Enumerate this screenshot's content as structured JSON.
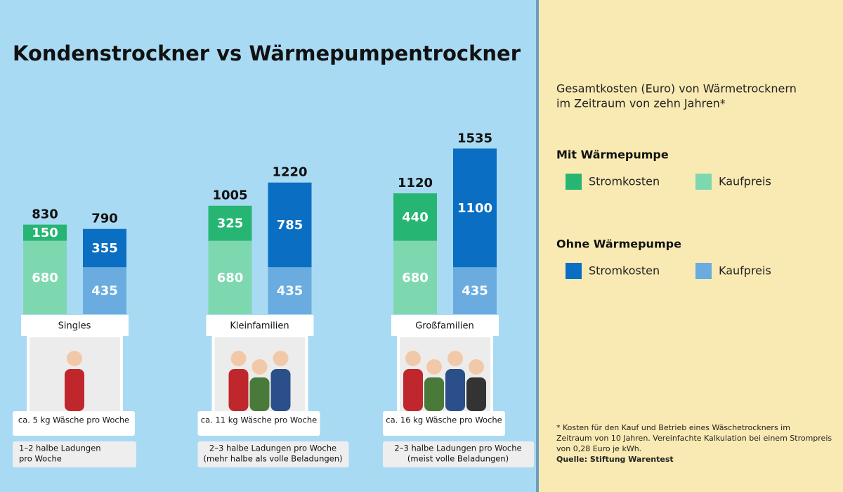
{
  "chart_data": {
    "type": "stacked-bar",
    "title": "Kondenstrockner vs Wärmepumpentrockner",
    "legend_title": [
      "Gesamtkosten (Euro) von Wärmetrocknern",
      "im Zeitraum von zehn Jahren*"
    ],
    "categories": [
      "Singles",
      "Kleinfamilien",
      "Großfamilien"
    ],
    "laundry": [
      "ca. 5 kg Wäsche pro Woche",
      "ca. 11 kg Wäsche pro Woche",
      "ca. 16 kg Wäsche pro Woche"
    ],
    "loads": [
      [
        "1–2  halbe Ladungen",
        "pro Woche"
      ],
      [
        "2–3  halbe Ladungen pro Woche",
        "(mehr halbe als volle Beladungen)"
      ],
      [
        "2–3  halbe Ladungen pro Woche",
        "(meist volle Beladungen)"
      ]
    ],
    "stacks": [
      {
        "name": "Mit Wärmepumpe",
        "totals": [
          830,
          1005,
          1120
        ],
        "series": [
          {
            "name": "Kaufpreis",
            "color": "#7dd8b0",
            "values": [
              680,
              680,
              680
            ]
          },
          {
            "name": "Stromkosten",
            "color": "#27b574",
            "values": [
              150,
              325,
              440
            ]
          }
        ]
      },
      {
        "name": "Ohne Wärmepumpe",
        "totals": [
          790,
          1220,
          1535
        ],
        "series": [
          {
            "name": "Kaufpreis",
            "color": "#6aacdf",
            "values": [
              435,
              435,
              435
            ]
          },
          {
            "name": "Stromkosten",
            "color": "#0a6fc2",
            "values": [
              355,
              785,
              1100
            ]
          }
        ]
      }
    ],
    "footnote": [
      "* Kosten für den Kauf und Betrieb eines Wäschetrockners im",
      "Zeitraum von 10 Jahren. Vereinfachte Kalkulation bei einem Strompreis",
      "von 0,28 Euro je kWh."
    ],
    "source": "Quelle: Stiftung Warentest"
  }
}
